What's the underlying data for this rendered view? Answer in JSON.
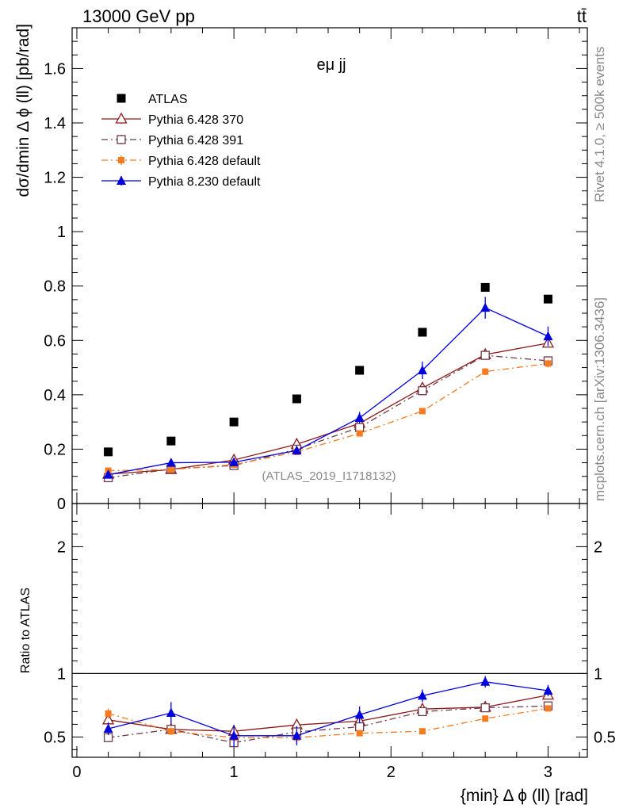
{
  "header": {
    "energy_label": "13000 GeV pp",
    "process_label": "tt̄"
  },
  "side_labels": {
    "rivet": "Rivet 4.1.0, ≥ 500k events",
    "mcplots": "mcplots.cern.ch [arXiv:1306.3436]"
  },
  "chart_data": [
    {
      "type": "scatter",
      "panel": "main",
      "title": "eμ jj",
      "watermark": "(ATLAS_2019_I1718132)",
      "xlabel": "{min} Δ ϕ (ll) [rad]",
      "ylabel": "dσ/dmin Δ ϕ (ll) [pb/rad]",
      "xlim": [
        -0.03,
        3.25
      ],
      "ylim": [
        0,
        1.75
      ],
      "x_ticks": [
        0,
        1,
        2,
        3
      ],
      "x_tick_labels": [
        "0",
        "1",
        "2",
        "3"
      ],
      "y_ticks": [
        0,
        0.2,
        0.4,
        0.6,
        0.8,
        1,
        1.2,
        1.4,
        1.6
      ],
      "y_tick_labels": [
        "0",
        "0.2",
        "0.4",
        "0.6",
        "0.8",
        "1",
        "1.2",
        "1.4",
        "1.6"
      ],
      "legend_position": "top-left",
      "x": [
        0.2,
        0.6,
        1.0,
        1.4,
        1.8,
        2.2,
        2.6,
        3.0
      ],
      "series": [
        {
          "name": "ATLAS",
          "color": "#000000",
          "marker": "square-filled",
          "line": "none",
          "values": [
            0.19,
            0.23,
            0.3,
            0.385,
            0.49,
            0.63,
            0.795,
            0.752
          ],
          "errors": [
            0.005,
            0.005,
            0.006,
            0.006,
            0.007,
            0.008,
            0.01,
            0.01
          ]
        },
        {
          "name": "Pythia 6.428 370",
          "color": "#8b1a1a",
          "marker": "triangle-open",
          "line": "solid",
          "values": [
            0.108,
            0.125,
            0.16,
            0.218,
            0.295,
            0.425,
            0.548,
            0.59
          ],
          "errors": [
            0.006,
            0.007,
            0.007,
            0.009,
            0.011,
            0.013,
            0.014,
            0.015
          ]
        },
        {
          "name": "Pythia 6.428 391",
          "color": "#6e3a4a",
          "marker": "square-open",
          "line": "dashdot",
          "values": [
            0.095,
            0.127,
            0.14,
            0.2,
            0.28,
            0.415,
            0.545,
            0.525
          ],
          "errors": [
            0.006,
            0.007,
            0.007,
            0.009,
            0.011,
            0.013,
            0.014,
            0.015
          ]
        },
        {
          "name": "Pythia 6.428 default",
          "color": "#f47b20",
          "marker": "square-filled-small",
          "line": "dashdot",
          "values": [
            0.121,
            0.125,
            0.143,
            0.19,
            0.258,
            0.34,
            0.485,
            0.515
          ],
          "errors": [
            0.006,
            0.007,
            0.007,
            0.008,
            0.01,
            0.011,
            0.013,
            0.014
          ]
        },
        {
          "name": "Pythia 8.230 default",
          "color": "#0000dd",
          "marker": "triangle-filled",
          "line": "solid",
          "values": [
            0.106,
            0.15,
            0.152,
            0.195,
            0.315,
            0.49,
            0.72,
            0.615
          ],
          "errors": [
            0.009,
            0.012,
            0.013,
            0.015,
            0.022,
            0.032,
            0.04,
            0.036
          ]
        }
      ]
    },
    {
      "type": "scatter",
      "panel": "ratio",
      "ylabel": "Ratio to ATLAS",
      "ylim": [
        0.34,
        2.34
      ],
      "y_ticks": [
        0.5,
        1,
        2
      ],
      "y_tick_labels": [
        "0.5",
        "1",
        "2"
      ],
      "reference_line": 1,
      "x": [
        0.2,
        0.6,
        1.0,
        1.4,
        1.8,
        2.2,
        2.6,
        3.0
      ],
      "series": [
        {
          "name": "Pythia 6.428 370",
          "color": "#8b1a1a",
          "values": [
            0.635,
            0.56,
            0.545,
            0.595,
            0.625,
            0.72,
            0.735,
            0.83
          ],
          "errors": [
            0.035,
            0.03,
            0.025,
            0.025,
            0.025,
            0.02,
            0.02,
            0.02
          ]
        },
        {
          "name": "Pythia 6.428 391",
          "color": "#6e3a4a",
          "values": [
            0.495,
            0.56,
            0.455,
            0.54,
            0.58,
            0.7,
            0.73,
            0.745
          ],
          "errors": [
            0.035,
            0.03,
            0.025,
            0.025,
            0.025,
            0.02,
            0.02,
            0.02
          ]
        },
        {
          "name": "Pythia 6.428 default",
          "color": "#f47b20",
          "values": [
            0.685,
            0.545,
            0.495,
            0.495,
            0.53,
            0.545,
            0.645,
            0.725
          ],
          "errors": [
            0.04,
            0.03,
            0.025,
            0.025,
            0.02,
            0.02,
            0.02,
            0.02
          ]
        },
        {
          "name": "Pythia 8.230 default",
          "color": "#0000dd",
          "values": [
            0.565,
            0.69,
            0.51,
            0.51,
            0.675,
            0.825,
            0.935,
            0.865
          ],
          "errors": [
            0.05,
            0.085,
            0.085,
            0.075,
            0.065,
            0.05,
            0.045,
            0.045
          ]
        }
      ]
    }
  ]
}
